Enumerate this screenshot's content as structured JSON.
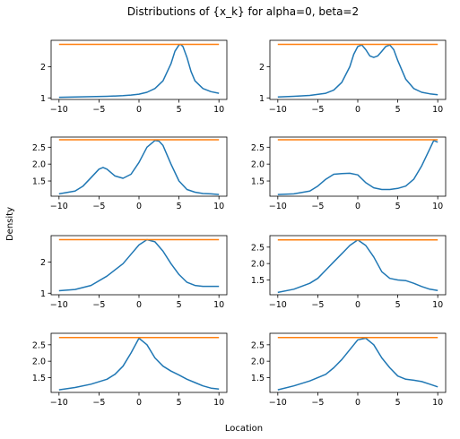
{
  "figure": {
    "title": "Distributions of {x_k} for alpha=0, beta=2",
    "xlabel": "Location",
    "ylabel": "Density"
  },
  "colors": {
    "series": "#1f77b4",
    "reference": "#ff7f0e",
    "axes": "#000000"
  },
  "chart_data": [
    {
      "type": "line",
      "xlim": [
        -10,
        10
      ],
      "ylim": [
        0.95,
        2.85
      ],
      "xticks": [
        -10,
        -5,
        0,
        5,
        10
      ],
      "yticks": [
        1,
        2
      ],
      "series": [
        {
          "x": [
            -10,
            -8,
            -6,
            -4,
            -2,
            -1,
            0,
            1,
            2,
            3,
            4,
            4.5,
            5,
            5.2,
            5.5,
            6,
            6.5,
            7,
            8,
            9,
            10
          ],
          "y": [
            1.02,
            1.03,
            1.04,
            1.05,
            1.07,
            1.09,
            1.12,
            1.18,
            1.3,
            1.55,
            2.1,
            2.5,
            2.7,
            2.72,
            2.65,
            2.3,
            1.85,
            1.55,
            1.3,
            1.2,
            1.15
          ]
        },
        {
          "x": [
            -10,
            10
          ],
          "y": [
            2.72,
            2.72
          ]
        }
      ]
    },
    {
      "type": "line",
      "xlim": [
        -10,
        10
      ],
      "ylim": [
        0.95,
        2.85
      ],
      "xticks": [
        -10,
        -5,
        0,
        5,
        10
      ],
      "yticks": [
        1,
        2
      ],
      "series": [
        {
          "x": [
            -10,
            -8,
            -6,
            -4,
            -3,
            -2,
            -1,
            -0.5,
            0,
            0.5,
            1,
            1.5,
            2,
            2.5,
            3,
            3.5,
            4,
            4.5,
            5,
            6,
            7,
            8,
            9,
            10
          ],
          "y": [
            1.03,
            1.05,
            1.08,
            1.15,
            1.25,
            1.5,
            2.0,
            2.4,
            2.65,
            2.7,
            2.55,
            2.35,
            2.3,
            2.35,
            2.5,
            2.65,
            2.7,
            2.55,
            2.2,
            1.6,
            1.3,
            1.18,
            1.13,
            1.1
          ]
        },
        {
          "x": [
            -10,
            10
          ],
          "y": [
            2.72,
            2.72
          ]
        }
      ]
    },
    {
      "type": "line",
      "xlim": [
        -10,
        10
      ],
      "ylim": [
        1.05,
        2.8
      ],
      "xticks": [
        -10,
        -5,
        0,
        5,
        10
      ],
      "yticks": [
        1.5,
        2.0,
        2.5
      ],
      "series": [
        {
          "x": [
            -10,
            -8,
            -7,
            -6,
            -5,
            -4.5,
            -4,
            -3,
            -2,
            -1,
            0,
            1,
            2,
            2.5,
            3,
            4,
            5,
            6,
            7,
            8,
            9,
            10
          ],
          "y": [
            1.12,
            1.2,
            1.35,
            1.6,
            1.85,
            1.9,
            1.85,
            1.65,
            1.58,
            1.7,
            2.05,
            2.5,
            2.7,
            2.68,
            2.55,
            2.0,
            1.5,
            1.25,
            1.17,
            1.13,
            1.12,
            1.1
          ]
        },
        {
          "x": [
            -10,
            10
          ],
          "y": [
            2.72,
            2.72
          ]
        }
      ]
    },
    {
      "type": "line",
      "xlim": [
        -10,
        10
      ],
      "ylim": [
        1.05,
        2.8
      ],
      "xticks": [
        -10,
        -5,
        0,
        5,
        10
      ],
      "yticks": [
        1.5,
        2.0,
        2.5
      ],
      "series": [
        {
          "x": [
            -10,
            -8,
            -6,
            -5,
            -4,
            -3,
            -2,
            -1,
            0,
            1,
            2,
            3,
            4,
            5,
            6,
            7,
            8,
            9,
            9.5,
            10
          ],
          "y": [
            1.1,
            1.12,
            1.2,
            1.35,
            1.55,
            1.7,
            1.72,
            1.73,
            1.68,
            1.45,
            1.3,
            1.25,
            1.25,
            1.28,
            1.35,
            1.55,
            1.95,
            2.45,
            2.7,
            2.65
          ]
        },
        {
          "x": [
            -10,
            10
          ],
          "y": [
            2.72,
            2.72
          ]
        }
      ]
    },
    {
      "type": "line",
      "xlim": [
        -10,
        10
      ],
      "ylim": [
        0.95,
        2.85
      ],
      "xticks": [
        -10,
        -5,
        0,
        5,
        10
      ],
      "yticks": [
        1,
        2
      ],
      "series": [
        {
          "x": [
            -10,
            -8,
            -6,
            -4,
            -2,
            -1,
            0,
            1,
            2,
            3,
            4,
            5,
            6,
            7,
            8,
            9,
            10
          ],
          "y": [
            1.08,
            1.12,
            1.25,
            1.55,
            1.95,
            2.25,
            2.55,
            2.72,
            2.65,
            2.35,
            1.95,
            1.6,
            1.35,
            1.25,
            1.22,
            1.22,
            1.22
          ]
        },
        {
          "x": [
            -10,
            10
          ],
          "y": [
            2.72,
            2.72
          ]
        }
      ]
    },
    {
      "type": "line",
      "xlim": [
        -10,
        10
      ],
      "ylim": [
        1.05,
        2.85
      ],
      "xticks": [
        -10,
        -5,
        0,
        5,
        10
      ],
      "yticks": [
        1.5,
        2.0,
        2.5
      ],
      "series": [
        {
          "x": [
            -10,
            -8,
            -6,
            -5,
            -4,
            -3,
            -2,
            -1,
            0,
            1,
            2,
            3,
            4,
            5,
            6,
            7,
            8,
            9,
            10
          ],
          "y": [
            1.12,
            1.22,
            1.4,
            1.55,
            1.8,
            2.05,
            2.3,
            2.55,
            2.72,
            2.55,
            2.2,
            1.75,
            1.55,
            1.5,
            1.48,
            1.4,
            1.3,
            1.22,
            1.18
          ]
        },
        {
          "x": [
            -10,
            10
          ],
          "y": [
            2.72,
            2.72
          ]
        }
      ]
    },
    {
      "type": "line",
      "xlim": [
        -10,
        10
      ],
      "ylim": [
        1.05,
        2.85
      ],
      "xticks": [
        -10,
        -5,
        0,
        5,
        10
      ],
      "yticks": [
        1.5,
        2.0,
        2.5
      ],
      "series": [
        {
          "x": [
            -10,
            -8,
            -6,
            -4,
            -3,
            -2,
            -1,
            0,
            1,
            2,
            3,
            4,
            5,
            6,
            7,
            8,
            9,
            10
          ],
          "y": [
            1.13,
            1.2,
            1.3,
            1.45,
            1.6,
            1.85,
            2.25,
            2.7,
            2.5,
            2.1,
            1.85,
            1.7,
            1.58,
            1.45,
            1.35,
            1.25,
            1.18,
            1.15
          ]
        },
        {
          "x": [
            -10,
            10
          ],
          "y": [
            2.72,
            2.72
          ]
        }
      ]
    },
    {
      "type": "line",
      "xlim": [
        -10,
        10
      ],
      "ylim": [
        1.05,
        2.85
      ],
      "xticks": [
        -10,
        -5,
        0,
        5,
        10
      ],
      "yticks": [
        1.5,
        2.0,
        2.5
      ],
      "series": [
        {
          "x": [
            -10,
            -8,
            -6,
            -4,
            -3,
            -2,
            -1,
            0,
            1,
            2,
            3,
            4,
            5,
            6,
            7,
            8,
            9,
            10
          ],
          "y": [
            1.13,
            1.25,
            1.4,
            1.6,
            1.8,
            2.05,
            2.35,
            2.65,
            2.7,
            2.5,
            2.1,
            1.8,
            1.55,
            1.45,
            1.42,
            1.38,
            1.3,
            1.22
          ]
        },
        {
          "x": [
            -10,
            10
          ],
          "y": [
            2.72,
            2.72
          ]
        }
      ]
    }
  ]
}
